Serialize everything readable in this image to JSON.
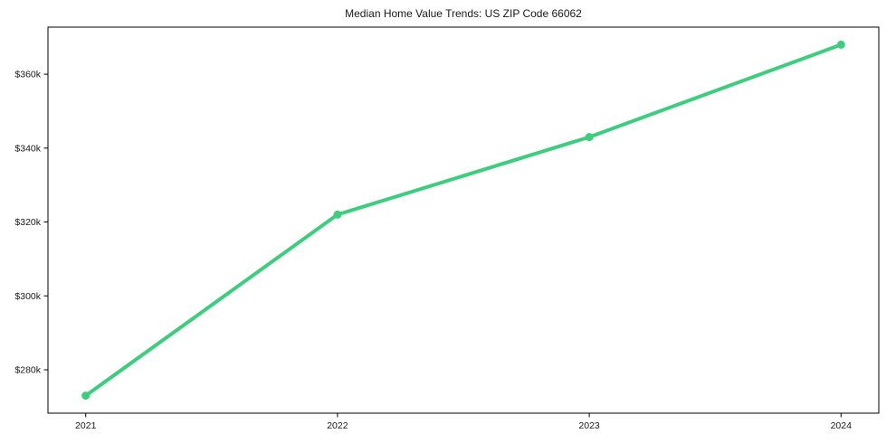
{
  "chart_data": {
    "type": "line",
    "title": "Median Home Value Trends: US ZIP Code 66062",
    "x": [
      2021,
      2022,
      2023,
      2024
    ],
    "series": [
      {
        "name": "Median Home Value",
        "values": [
          273000,
          322000,
          343000,
          368000
        ]
      }
    ],
    "x_tick_values": [
      2021,
      2022,
      2023,
      2024
    ],
    "x_tick_labels": [
      "2021",
      "2022",
      "2023",
      "2024"
    ],
    "y_tick_values": [
      280000,
      300000,
      320000,
      340000,
      360000
    ],
    "y_tick_labels": [
      "$280k",
      "$300k",
      "$320k",
      "$340k",
      "$360k"
    ],
    "xlim": [
      2020.85,
      2024.15
    ],
    "ylim": [
      268250,
      372750
    ],
    "grid": false,
    "legend_position": "none",
    "xlabel": "",
    "ylabel": "",
    "colors": {
      "line": "#3ecd7f",
      "marker": "#3ecd7f",
      "spine": "#000000",
      "text": "#1a1a1a",
      "background": "#ffffff"
    }
  }
}
